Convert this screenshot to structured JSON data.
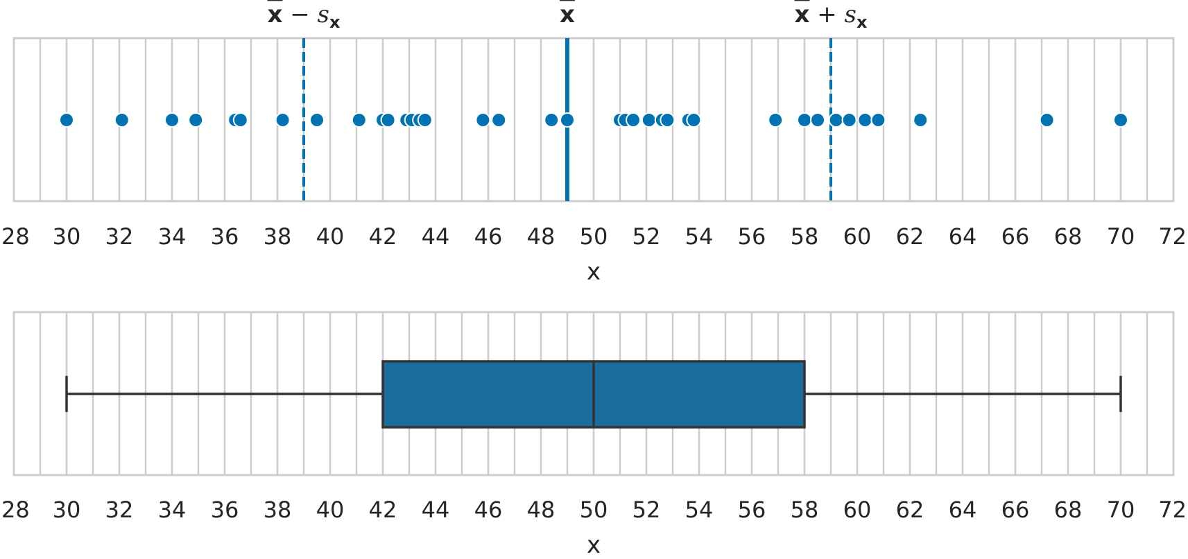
{
  "colors": {
    "point": "#0173b2",
    "box_fill": "#1a6e9e",
    "box_edge": "#333333",
    "grid": "#cccccc",
    "text": "#262626"
  },
  "chart_data": [
    {
      "type": "scatter",
      "xlabel": "x",
      "xlim": [
        28,
        72
      ],
      "xticks": [
        28,
        30,
        32,
        34,
        36,
        38,
        40,
        42,
        44,
        46,
        48,
        50,
        52,
        54,
        56,
        58,
        60,
        62,
        64,
        66,
        68,
        70,
        72
      ],
      "tick_labels": [
        "28",
        "30",
        "32",
        "34",
        "36",
        "38",
        "40",
        "42",
        "44",
        "46",
        "48",
        "50",
        "52",
        "54",
        "56",
        "58",
        "60",
        "62",
        "64",
        "66",
        "68",
        "70",
        "72"
      ],
      "grid": true,
      "points": [
        30.0,
        32.1,
        34.0,
        34.9,
        36.4,
        36.6,
        38.2,
        39.5,
        41.1,
        42.0,
        42.2,
        42.9,
        43.1,
        43.4,
        43.6,
        45.8,
        46.4,
        48.4,
        49.0,
        51.0,
        51.2,
        51.5,
        52.1,
        52.6,
        52.8,
        53.6,
        53.8,
        56.9,
        58.0,
        58.5,
        59.2,
        59.7,
        60.3,
        60.8,
        62.4,
        67.2,
        70.0
      ],
      "reference_lines": [
        {
          "x": 39.0,
          "style": "dashed",
          "label": {
            "bar": "x",
            "op": " − ",
            "s": "s",
            "sub": "x"
          }
        },
        {
          "x": 49.0,
          "style": "solid",
          "label": {
            "bar": "x",
            "op": "",
            "s": "",
            "sub": ""
          }
        },
        {
          "x": 59.0,
          "style": "dashed",
          "label": {
            "bar": "x",
            "op": " + ",
            "s": "s",
            "sub": "x"
          }
        }
      ]
    },
    {
      "type": "box",
      "xlabel": "x",
      "xlim": [
        28,
        72
      ],
      "xticks": [
        28,
        30,
        32,
        34,
        36,
        38,
        40,
        42,
        44,
        46,
        48,
        50,
        52,
        54,
        56,
        58,
        60,
        62,
        64,
        66,
        68,
        70,
        72
      ],
      "tick_labels": [
        "28",
        "30",
        "32",
        "34",
        "36",
        "38",
        "40",
        "42",
        "44",
        "46",
        "48",
        "50",
        "52",
        "54",
        "56",
        "58",
        "60",
        "62",
        "64",
        "66",
        "68",
        "70",
        "72"
      ],
      "grid": true,
      "min": 30,
      "q1": 42,
      "median": 50,
      "q3": 58,
      "max": 70
    }
  ]
}
